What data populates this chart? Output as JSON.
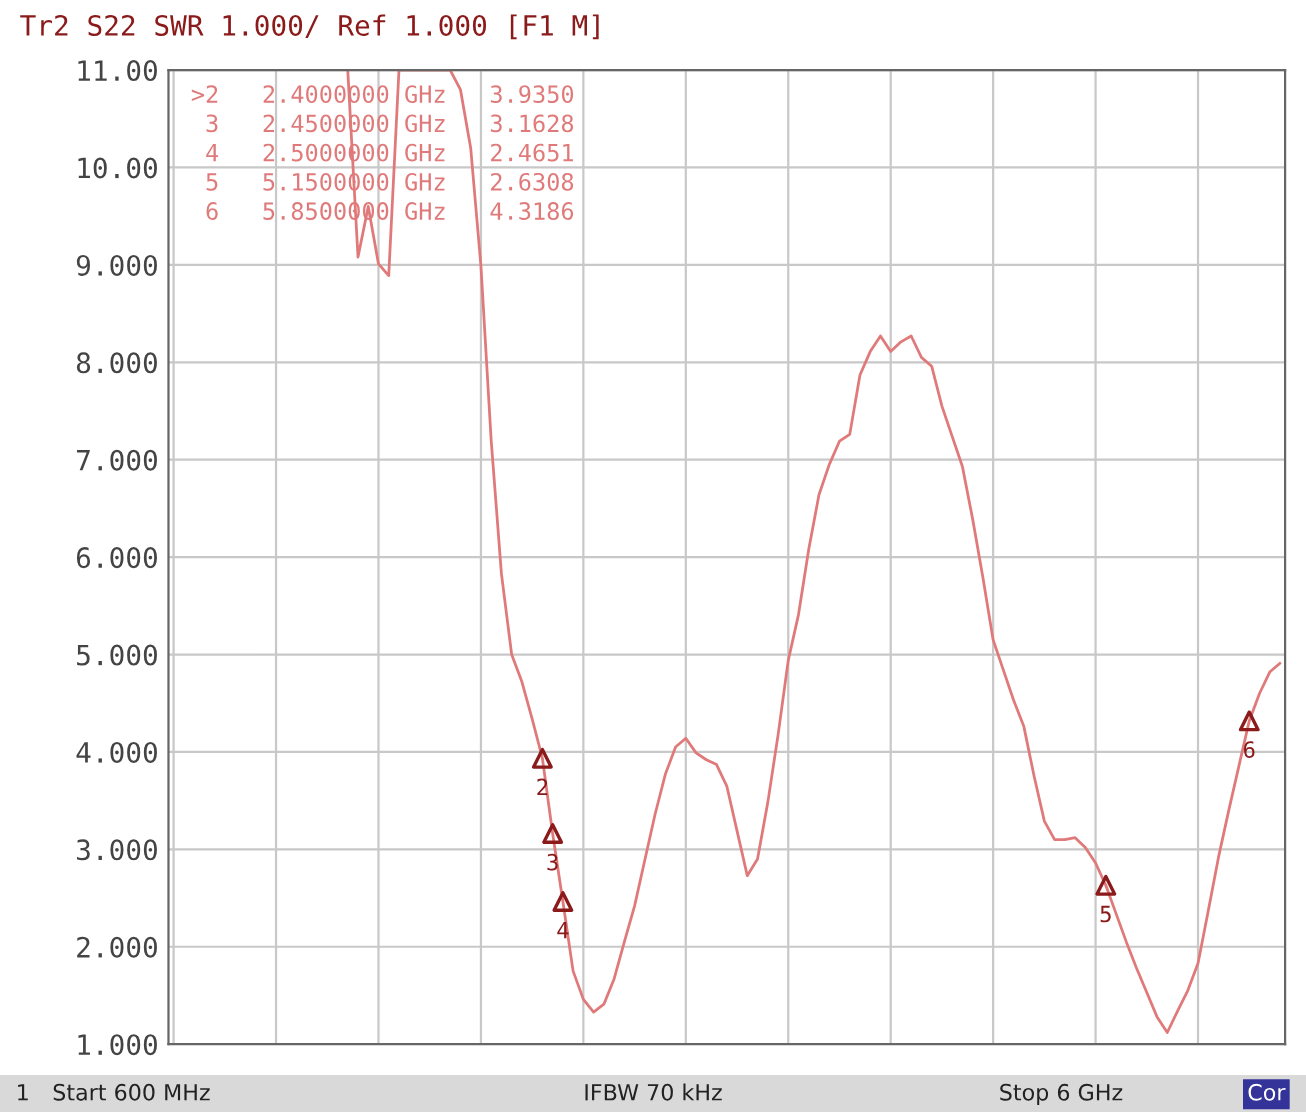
{
  "chart_data": {
    "type": "line",
    "title": "Tr2 S22 SWR 1.000/ Ref 1.000 [F1 M]",
    "categories": [
      null,
      null,
      null,
      null,
      null,
      null,
      null,
      null,
      null,
      null,
      null,
      null,
      null,
      null,
      null,
      null,
      null,
      null,
      null,
      null,
      null,
      null,
      null,
      null,
      null,
      null,
      null,
      null,
      null,
      null,
      null,
      null,
      null,
      null,
      null,
      null,
      null,
      null,
      null,
      null,
      null,
      null,
      null,
      null,
      null,
      null,
      null,
      null,
      null,
      null,
      null,
      null,
      null,
      null,
      null,
      null,
      null,
      null,
      null,
      null,
      null,
      null,
      null,
      null,
      null,
      null,
      null,
      null,
      null,
      null,
      null,
      null,
      null,
      null,
      null,
      null,
      null,
      null,
      null,
      null,
      null,
      null,
      null,
      null,
      null,
      null,
      null,
      null,
      null,
      null,
      null,
      null,
      null,
      null,
      null,
      null,
      null,
      null,
      null,
      null,
      null,
      null,
      null,
      null,
      null,
      null,
      null,
      null,
      null
    ],
    "ylim": [
      1,
      11
    ],
    "yticks": [
      {
        "value": 1,
        "label": "1.000"
      },
      {
        "value": 2,
        "label": "2.000"
      },
      {
        "value": 3,
        "label": "3.000"
      },
      {
        "value": 4,
        "label": "4.000"
      },
      {
        "value": 5,
        "label": "5.000"
      },
      {
        "value": 6,
        "label": "6.000"
      },
      {
        "value": 7,
        "label": "7.000"
      },
      {
        "value": 8,
        "label": "8.000"
      },
      {
        "value": 9,
        "label": "9.000"
      },
      {
        "value": 10,
        "label": "10.00"
      },
      {
        "value": 11,
        "label": "11.00"
      }
    ],
    "tick_labels": "y",
    "grid": true,
    "series": [
      {
        "color": "#e07a7a",
        "values": [
          null,
          null,
          null,
          null,
          null,
          null,
          null,
          null,
          null,
          null,
          null,
          null,
          null,
          null,
          null,
          null,
          null,
          11,
          9.08,
          9.6,
          9.01,
          8.89,
          11,
          11,
          11,
          11,
          11,
          11,
          10.8,
          10.2,
          8.99,
          7.2,
          5.83,
          5.0,
          4.72,
          4.34,
          3.935,
          3.1628,
          2.4651,
          1.75,
          1.46,
          1.33,
          1.41,
          1.67,
          2.05,
          2.42,
          2.89,
          3.36,
          3.77,
          4.05,
          4.14,
          3.99,
          3.92,
          3.87,
          3.65,
          3.19,
          2.73,
          2.9,
          3.48,
          4.17,
          4.94,
          5.41,
          6.08,
          6.64,
          6.95,
          7.19,
          7.26,
          7.87,
          8.11,
          8.27,
          8.11,
          8.21,
          8.27,
          8.05,
          7.96,
          7.55,
          7.24,
          6.93,
          6.39,
          5.79,
          5.15,
          4.84,
          4.53,
          4.26,
          3.75,
          3.29,
          3.1,
          3.1,
          3.12,
          3.02,
          2.86,
          2.6308,
          2.34,
          2.05,
          1.78,
          1.53,
          1.28,
          1.12,
          1.34,
          1.55,
          1.83,
          2.37,
          2.92,
          3.4,
          3.86,
          4.3186,
          4.6,
          4.82,
          4.91
        ]
      },
      {
        "type": "scatter",
        "color": "#8b1a1a",
        "marker": "triangle",
        "values": [
          null,
          null,
          null,
          null,
          null,
          null,
          null,
          null,
          null,
          null,
          null,
          null,
          null,
          null,
          null,
          null,
          null,
          null,
          null,
          null,
          null,
          null,
          null,
          null,
          null,
          null,
          null,
          null,
          null,
          null,
          null,
          null,
          null,
          null,
          null,
          null,
          3.935,
          3.1628,
          2.4651,
          null,
          null,
          null,
          null,
          null,
          null,
          null,
          null,
          null,
          null,
          null,
          null,
          null,
          null,
          null,
          null,
          null,
          null,
          null,
          null,
          null,
          null,
          null,
          null,
          null,
          null,
          null,
          null,
          null,
          null,
          null,
          null,
          null,
          null,
          null,
          null,
          null,
          null,
          null,
          null,
          null,
          null,
          null,
          null,
          null,
          null,
          null,
          null,
          null,
          null,
          null,
          null,
          2.6308,
          null,
          null,
          null,
          null,
          null,
          null,
          null,
          null,
          null,
          null,
          null,
          null,
          null,
          4.3186,
          null,
          null,
          null
        ]
      }
    ],
    "annotations": [
      ">2   2.4000000 GHz   3.9350",
      " 3   2.4500000 GHz   3.1628",
      " 4   2.5000000 GHz   2.4651",
      " 5   5.1500000 GHz   2.6308",
      " 6   5.8500000 GHz   4.3186",
      "1",
      "Start 600 MHz",
      "IFBW 70 kHz",
      "Stop 6 GHz",
      "Cor",
      {
        "text": "2",
        "y": 3.935
      },
      {
        "text": "3",
        "y": 3.1628
      },
      {
        "text": "4",
        "y": 2.4651
      },
      {
        "text": "5",
        "y": 2.6308
      },
      {
        "text": "6",
        "y": 4.3186
      }
    ]
  }
}
